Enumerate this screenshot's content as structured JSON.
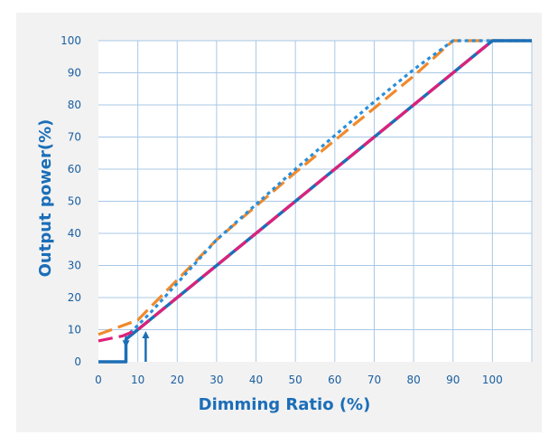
{
  "chart_data": {
    "type": "line",
    "xlabel": "Dimming Ratio (%)",
    "ylabel": "Output power(%)",
    "xlim": [
      0,
      110
    ],
    "ylim": [
      0,
      100
    ],
    "x_ticks": [
      0,
      10,
      20,
      30,
      40,
      50,
      60,
      70,
      80,
      90,
      100
    ],
    "y_ticks": [
      0,
      10,
      20,
      30,
      40,
      50,
      60,
      70,
      80,
      90,
      100
    ],
    "grid": true,
    "legend": "none",
    "series": [
      {
        "style": "solid",
        "color": "#1c6fb6",
        "points": [
          [
            0,
            0
          ],
          [
            7,
            0
          ],
          [
            7,
            7
          ],
          [
            10,
            10
          ],
          [
            100,
            100
          ],
          [
            110,
            100
          ]
        ]
      },
      {
        "style": "dashed",
        "color": "#e0207a",
        "points": [
          [
            0,
            6.5
          ],
          [
            6,
            8
          ],
          [
            10,
            10
          ],
          [
            100,
            100
          ]
        ]
      },
      {
        "style": "dashed",
        "color": "#f08a2c",
        "points": [
          [
            0,
            8.5
          ],
          [
            10,
            13
          ],
          [
            30,
            38
          ],
          [
            50,
            59
          ],
          [
            70,
            79
          ],
          [
            80,
            89
          ],
          [
            90,
            100
          ],
          [
            110,
            100
          ]
        ]
      },
      {
        "style": "dotted",
        "color": "#2a8ed8",
        "points": [
          [
            8,
            9
          ],
          [
            13,
            15
          ],
          [
            30,
            38
          ],
          [
            50,
            60
          ],
          [
            70,
            81
          ],
          [
            80,
            91
          ],
          [
            90,
            100
          ],
          [
            110,
            100
          ]
        ]
      }
    ],
    "annotations": [
      {
        "type": "arrow",
        "direction": "up",
        "x": 12,
        "y_from": 0,
        "y_to": 9,
        "color": "#1c6fb6"
      },
      {
        "type": "arrow",
        "direction": "down",
        "x": 7,
        "y_from": 8,
        "y_to": 5,
        "color": "#1c6fb6"
      }
    ]
  }
}
